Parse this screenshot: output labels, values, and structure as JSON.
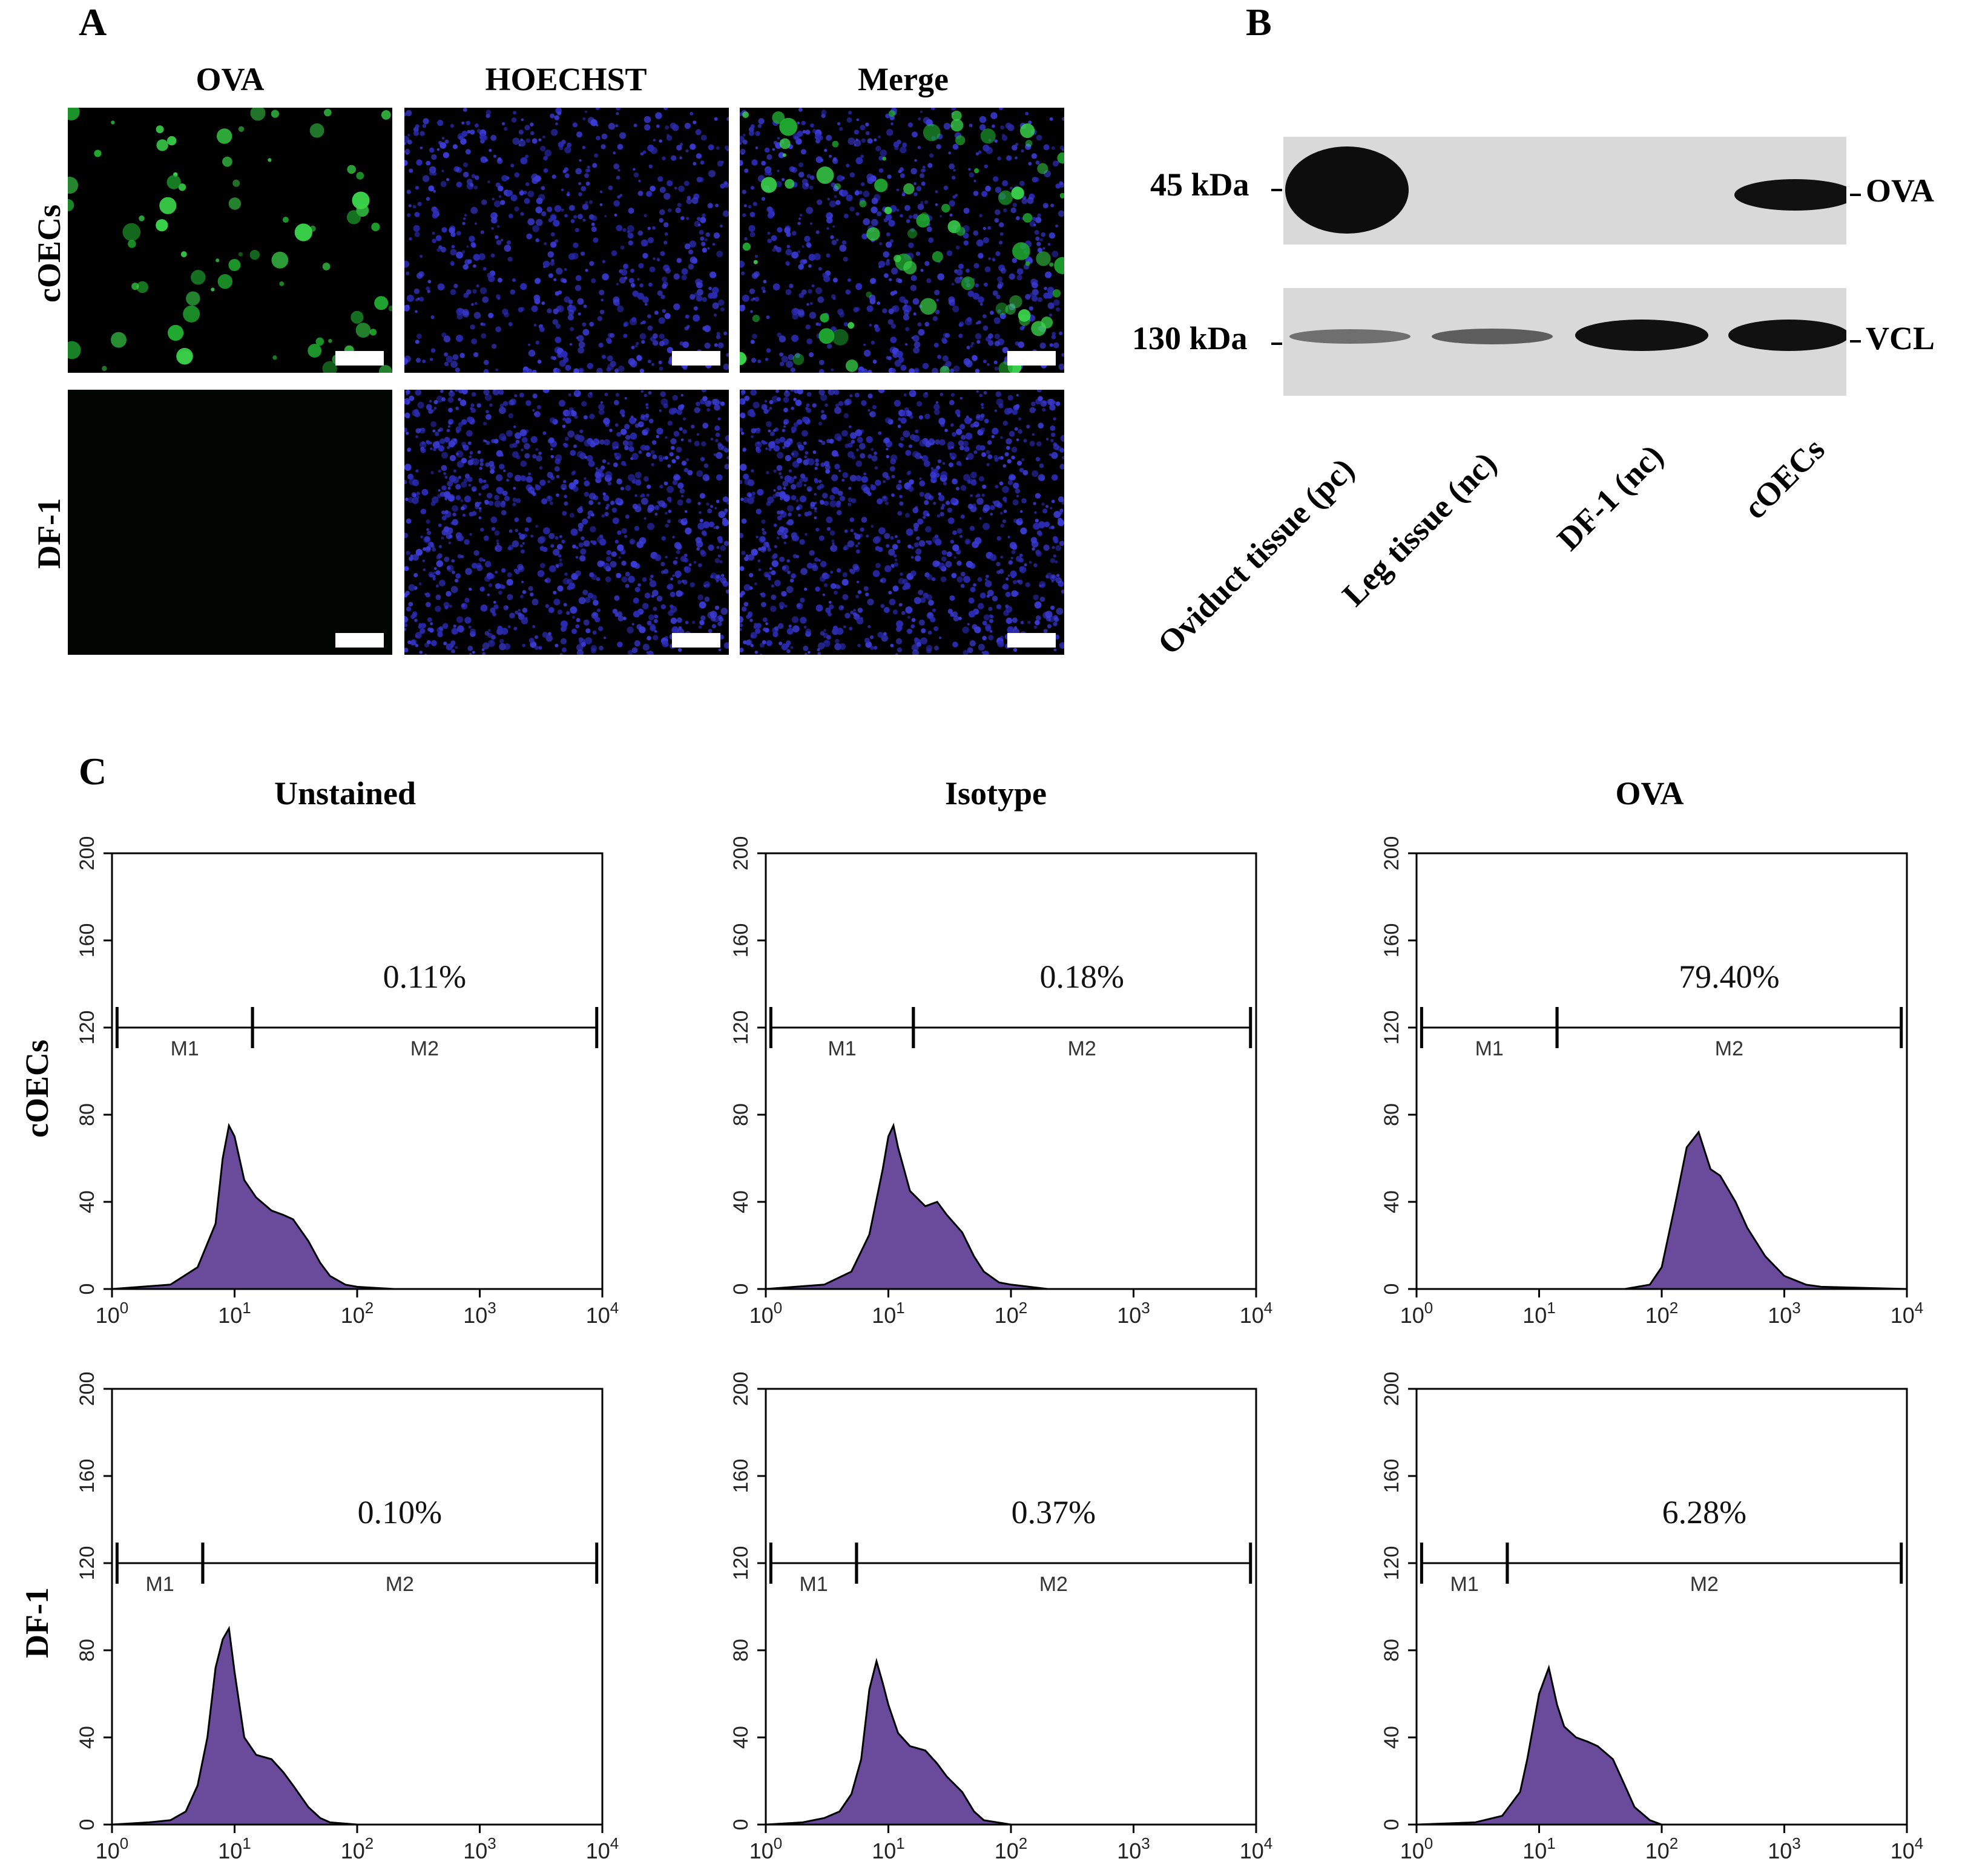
{
  "panel_a": {
    "letter": "A",
    "columns": [
      "OVA",
      "HOECHST",
      "Merge"
    ],
    "rows": [
      "cOECs",
      "DF-1"
    ]
  },
  "panel_b": {
    "letter": "B",
    "markers": [
      "45 kDa",
      "130 kDa"
    ],
    "bands": [
      "OVA",
      "VCL"
    ],
    "lanes": [
      "Oviduct tissue (pc)",
      "Leg tissue (nc)",
      "DF-1 (nc)",
      "cOECs"
    ],
    "colors": {
      "blot_bg": "#d9d9d9",
      "band": "#111111"
    }
  },
  "panel_c": {
    "letter": "C",
    "columns": [
      "Unstained",
      "Isotype",
      "OVA"
    ],
    "rows": [
      "cOECs",
      "DF-1"
    ],
    "colors": {
      "fill": "#6a4a9a"
    }
  },
  "chart_data": [
    {
      "type": "area",
      "panel": "C",
      "row": "cOECs",
      "column": "Unstained",
      "xscale": "log",
      "xlim": [
        1,
        10000
      ],
      "ylim": [
        0,
        200
      ],
      "yticks": [
        0,
        40,
        80,
        120,
        160,
        200
      ],
      "xticks": [
        "10^0",
        "10^1",
        "10^2",
        "10^3",
        "10^4"
      ],
      "gates": [
        {
          "name": "M1",
          "from": 1.1,
          "to": 14
        },
        {
          "name": "M2",
          "from": 14,
          "to": 9000
        }
      ],
      "gate_y": 120,
      "annotation": "0.11%",
      "x": [
        1,
        3,
        5,
        7,
        8,
        9,
        10,
        12,
        15,
        20,
        25,
        30,
        40,
        50,
        60,
        80,
        100,
        200,
        10000
      ],
      "y": [
        0,
        2,
        10,
        30,
        60,
        75,
        70,
        50,
        42,
        36,
        34,
        32,
        22,
        12,
        6,
        2,
        1,
        0,
        0
      ]
    },
    {
      "type": "area",
      "panel": "C",
      "row": "cOECs",
      "column": "Isotype",
      "xscale": "log",
      "xlim": [
        1,
        10000
      ],
      "ylim": [
        0,
        200
      ],
      "yticks": [
        0,
        40,
        80,
        120,
        160,
        200
      ],
      "xticks": [
        "10^0",
        "10^1",
        "10^2",
        "10^3",
        "10^4"
      ],
      "gates": [
        {
          "name": "M1",
          "from": 1.1,
          "to": 16
        },
        {
          "name": "M2",
          "from": 16,
          "to": 9000
        }
      ],
      "gate_y": 120,
      "annotation": "0.18%",
      "x": [
        1,
        3,
        5,
        7,
        9,
        10,
        11,
        12,
        15,
        20,
        25,
        30,
        40,
        50,
        60,
        80,
        100,
        200,
        10000
      ],
      "y": [
        0,
        2,
        8,
        25,
        55,
        70,
        75,
        65,
        45,
        38,
        40,
        34,
        26,
        15,
        8,
        3,
        2,
        0,
        0
      ]
    },
    {
      "type": "area",
      "panel": "C",
      "row": "cOECs",
      "column": "OVA",
      "xscale": "log",
      "xlim": [
        1,
        10000
      ],
      "ylim": [
        0,
        200
      ],
      "yticks": [
        0,
        40,
        80,
        120,
        160,
        200
      ],
      "xticks": [
        "10^0",
        "10^1",
        "10^2",
        "10^3",
        "10^4"
      ],
      "gates": [
        {
          "name": "M1",
          "from": 1.1,
          "to": 14
        },
        {
          "name": "M2",
          "from": 14,
          "to": 9000
        }
      ],
      "gate_y": 120,
      "annotation": "79.40%",
      "x": [
        1,
        50,
        80,
        100,
        130,
        160,
        200,
        250,
        300,
        400,
        500,
        700,
        1000,
        1500,
        2000,
        10000
      ],
      "y": [
        0,
        0,
        2,
        10,
        40,
        65,
        72,
        55,
        52,
        40,
        28,
        15,
        6,
        2,
        1,
        0
      ]
    },
    {
      "type": "area",
      "panel": "C",
      "row": "DF-1",
      "column": "Unstained",
      "xscale": "log",
      "xlim": [
        1,
        10000
      ],
      "ylim": [
        0,
        200
      ],
      "yticks": [
        0,
        40,
        80,
        120,
        160,
        200
      ],
      "xticks": [
        "10^0",
        "10^1",
        "10^2",
        "10^3",
        "10^4"
      ],
      "gates": [
        {
          "name": "M1",
          "from": 1.1,
          "to": 5.5
        },
        {
          "name": "M2",
          "from": 5.5,
          "to": 9000
        }
      ],
      "gate_y": 120,
      "annotation": "0.10%",
      "x": [
        1,
        2,
        3,
        4,
        5,
        6,
        7,
        8,
        9,
        10,
        12,
        15,
        20,
        25,
        30,
        40,
        50,
        60,
        100,
        10000
      ],
      "y": [
        0,
        1,
        2,
        6,
        18,
        40,
        72,
        85,
        90,
        70,
        40,
        32,
        30,
        24,
        18,
        8,
        3,
        1,
        0,
        0
      ]
    },
    {
      "type": "area",
      "panel": "C",
      "row": "DF-1",
      "column": "Isotype",
      "xscale": "log",
      "xlim": [
        1,
        10000
      ],
      "ylim": [
        0,
        200
      ],
      "yticks": [
        0,
        40,
        80,
        120,
        160,
        200
      ],
      "xticks": [
        "10^0",
        "10^1",
        "10^2",
        "10^3",
        "10^4"
      ],
      "gates": [
        {
          "name": "M1",
          "from": 1.1,
          "to": 5.5
        },
        {
          "name": "M2",
          "from": 5.5,
          "to": 9000
        }
      ],
      "gate_y": 120,
      "annotation": "0.37%",
      "x": [
        1,
        2,
        3,
        4,
        5,
        6,
        7,
        8,
        9,
        10,
        12,
        15,
        20,
        25,
        30,
        40,
        50,
        60,
        100,
        10000
      ],
      "y": [
        0,
        1,
        3,
        6,
        14,
        30,
        62,
        75,
        65,
        55,
        42,
        36,
        34,
        28,
        22,
        15,
        6,
        2,
        0,
        0
      ]
    },
    {
      "type": "area",
      "panel": "C",
      "row": "DF-1",
      "column": "OVA",
      "xscale": "log",
      "xlim": [
        1,
        10000
      ],
      "ylim": [
        0,
        200
      ],
      "yticks": [
        0,
        40,
        80,
        120,
        160,
        200
      ],
      "xticks": [
        "10^0",
        "10^1",
        "10^2",
        "10^3",
        "10^4"
      ],
      "gates": [
        {
          "name": "M1",
          "from": 1.1,
          "to": 5.5
        },
        {
          "name": "M2",
          "from": 5.5,
          "to": 9000
        }
      ],
      "gate_y": 120,
      "annotation": "6.28%",
      "x": [
        1,
        3,
        5,
        7,
        8,
        10,
        12,
        14,
        16,
        20,
        25,
        30,
        40,
        50,
        60,
        80,
        100,
        10000
      ],
      "y": [
        0,
        1,
        4,
        15,
        30,
        60,
        72,
        55,
        45,
        40,
        38,
        36,
        30,
        18,
        8,
        2,
        0,
        0
      ]
    }
  ]
}
